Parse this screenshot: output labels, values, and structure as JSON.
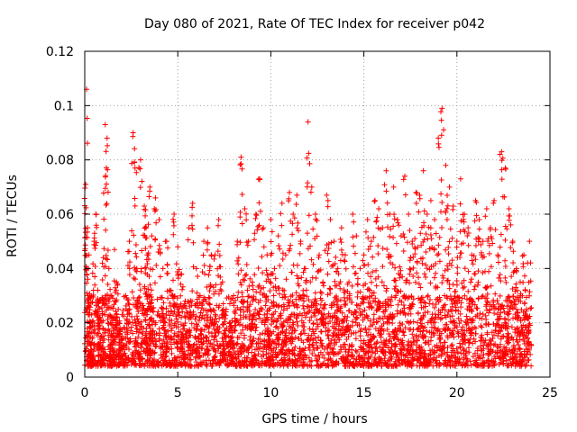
{
  "chart_data": {
    "type": "scatter",
    "title": "Day 080 of 2021, Rate Of TEC Index for receiver p042",
    "xlabel": "GPS time / hours",
    "ylabel": "ROTI / TECUs",
    "xlim": [
      0,
      25
    ],
    "ylim": [
      0,
      0.12
    ],
    "xticks": [
      0,
      5,
      10,
      15,
      20,
      25
    ],
    "xtick_labels": [
      "0",
      "5",
      "10",
      "15",
      "20",
      "25"
    ],
    "yticks": [
      0,
      0.02,
      0.04,
      0.06,
      0.08,
      0.1,
      0.12
    ],
    "ytick_labels": [
      "0",
      "0.02",
      "0.04",
      "0.06",
      "0.08",
      "0.1",
      "0.12"
    ],
    "grid": true,
    "marker": "plus",
    "color": "#ff0000",
    "series": [
      {
        "name": "ROTI",
        "x": [
          0.05,
          0.1,
          0.15,
          0.2,
          0.25,
          0.3,
          0.35,
          0.4,
          0.5,
          0.6,
          0.7,
          0.8,
          0.9,
          1.0,
          1.1,
          1.2,
          1.3,
          1.4,
          1.5,
          1.6,
          1.7,
          1.8,
          1.9,
          2.0,
          2.2,
          2.4,
          2.6,
          2.7,
          2.8,
          3.0,
          3.2,
          3.3,
          3.4,
          3.5,
          3.6,
          3.8,
          4.0,
          4.2,
          4.4,
          4.6,
          4.8,
          5.0,
          5.2,
          5.4,
          5.6,
          5.8,
          6.0,
          6.2,
          6.4,
          6.6,
          6.8,
          7.0,
          7.2,
          7.4,
          7.6,
          7.8,
          8.0,
          8.2,
          8.4,
          8.6,
          8.8,
          9.0,
          9.2,
          9.4,
          9.6,
          9.8,
          10.0,
          10.2,
          10.4,
          10.6,
          10.8,
          11.0,
          11.2,
          11.4,
          11.6,
          11.8,
          12.0,
          12.2,
          12.4,
          12.6,
          12.8,
          13.0,
          13.2,
          13.4,
          13.6,
          13.8,
          14.0,
          14.2,
          14.4,
          14.6,
          14.8,
          15.0,
          15.2,
          15.4,
          15.6,
          15.8,
          16.0,
          16.2,
          16.4,
          16.6,
          16.8,
          17.0,
          17.2,
          17.4,
          17.6,
          17.8,
          18.0,
          18.2,
          18.4,
          18.6,
          18.8,
          19.0,
          19.2,
          19.4,
          19.6,
          19.8,
          20.0,
          20.2,
          20.4,
          20.6,
          20.8,
          21.0,
          21.2,
          21.4,
          21.6,
          21.8,
          22.0,
          22.2,
          22.4,
          22.6,
          22.8,
          23.0,
          23.2,
          23.4,
          23.6,
          23.8,
          23.9
        ],
        "y": [
          0.071,
          0.106,
          0.055,
          0.04,
          0.03,
          0.02,
          0.012,
          0.008,
          0.05,
          0.06,
          0.032,
          0.022,
          0.015,
          0.044,
          0.093,
          0.088,
          0.04,
          0.03,
          0.02,
          0.047,
          0.035,
          0.025,
          0.018,
          0.015,
          0.03,
          0.05,
          0.09,
          0.077,
          0.04,
          0.08,
          0.063,
          0.055,
          0.045,
          0.07,
          0.052,
          0.066,
          0.058,
          0.04,
          0.05,
          0.032,
          0.06,
          0.048,
          0.038,
          0.028,
          0.055,
          0.064,
          0.04,
          0.03,
          0.05,
          0.055,
          0.045,
          0.045,
          0.058,
          0.035,
          0.025,
          0.02,
          0.03,
          0.05,
          0.081,
          0.062,
          0.05,
          0.035,
          0.06,
          0.073,
          0.055,
          0.045,
          0.058,
          0.04,
          0.052,
          0.064,
          0.045,
          0.068,
          0.06,
          0.067,
          0.05,
          0.04,
          0.094,
          0.07,
          0.06,
          0.045,
          0.035,
          0.067,
          0.058,
          0.05,
          0.04,
          0.055,
          0.045,
          0.035,
          0.06,
          0.052,
          0.04,
          0.045,
          0.058,
          0.05,
          0.065,
          0.062,
          0.055,
          0.076,
          0.06,
          0.07,
          0.058,
          0.052,
          0.074,
          0.06,
          0.05,
          0.068,
          0.067,
          0.076,
          0.06,
          0.065,
          0.058,
          0.088,
          0.099,
          0.078,
          0.07,
          0.063,
          0.05,
          0.073,
          0.06,
          0.055,
          0.045,
          0.065,
          0.058,
          0.05,
          0.062,
          0.055,
          0.065,
          0.045,
          0.083,
          0.077,
          0.062,
          0.05,
          0.04,
          0.035,
          0.045,
          0.042,
          0.05
        ],
        "band_low": 0.004,
        "band_high": 0.02
      }
    ]
  }
}
